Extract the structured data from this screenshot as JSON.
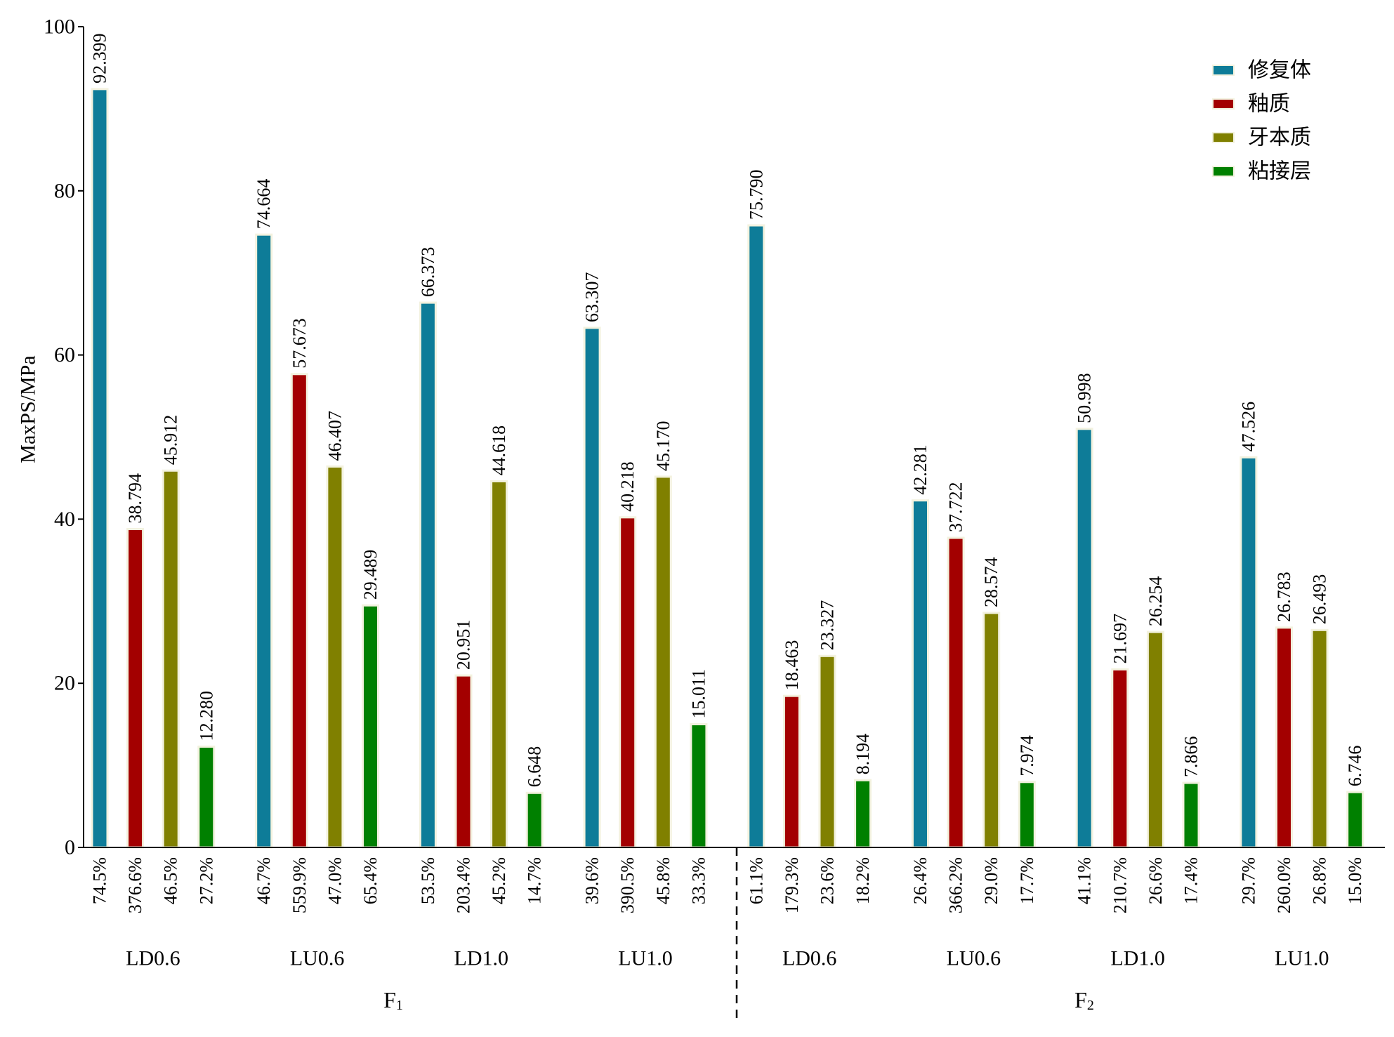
{
  "chart_data": {
    "type": "bar",
    "ylabel": "MaxPS/MPa",
    "ylim": [
      0,
      100
    ],
    "yticks": [
      "0",
      "20",
      "40",
      "60",
      "80",
      "100"
    ],
    "legend_position": "top-right",
    "grid": false,
    "colors": [
      "#0e7c98",
      "#a30000",
      "#808000",
      "#008000"
    ],
    "series": [
      {
        "name": "修复体"
      },
      {
        "name": "釉质"
      },
      {
        "name": "牙本质"
      },
      {
        "name": "粘接层"
      }
    ],
    "panels": [
      {
        "label_main": "F",
        "label_sub": "1",
        "groups": [
          {
            "name": "LD0.6",
            "values": [
              92.399,
              38.794,
              45.912,
              12.28
            ],
            "labels": [
              "92.399",
              "38.794",
              "45.912",
              "12.280"
            ],
            "percents": [
              "74.5%",
              "376.6%",
              "46.5%",
              "27.2%"
            ]
          },
          {
            "name": "LU0.6",
            "values": [
              74.664,
              57.673,
              46.407,
              29.489
            ],
            "labels": [
              "74.664",
              "57.673",
              "46.407",
              "29.489"
            ],
            "percents": [
              "46.7%",
              "559.9%",
              "47.0%",
              "65.4%"
            ]
          },
          {
            "name": "LD1.0",
            "values": [
              66.373,
              20.951,
              44.618,
              6.648
            ],
            "labels": [
              "66.373",
              "20.951",
              "44.618",
              "6.648"
            ],
            "percents": [
              "53.5%",
              "203.4%",
              "45.2%",
              "14.7%"
            ]
          },
          {
            "name": "LU1.0",
            "values": [
              63.307,
              40.218,
              45.17,
              15.011
            ],
            "labels": [
              "63.307",
              "40.218",
              "45.170",
              "15.011"
            ],
            "percents": [
              "39.6%",
              "390.5%",
              "45.8%",
              "33.3%"
            ]
          }
        ]
      },
      {
        "label_main": "F",
        "label_sub": "2",
        "groups": [
          {
            "name": "LD0.6",
            "values": [
              75.79,
              18.463,
              23.327,
              8.194
            ],
            "labels": [
              "75.790",
              "18.463",
              "23.327",
              "8.194"
            ],
            "percents": [
              "61.1%",
              "179.3%",
              "23.6%",
              "18.2%"
            ]
          },
          {
            "name": "LU0.6",
            "values": [
              42.281,
              37.722,
              28.574,
              7.974
            ],
            "labels": [
              "42.281",
              "37.722",
              "28.574",
              "7.974"
            ],
            "percents": [
              "26.4%",
              "366.2%",
              "29.0%",
              "17.7%"
            ]
          },
          {
            "name": "LD1.0",
            "values": [
              50.998,
              21.697,
              26.254,
              7.866
            ],
            "labels": [
              "50.998",
              "21.697",
              "26.254",
              "7.866"
            ],
            "percents": [
              "41.1%",
              "210.7%",
              "26.6%",
              "17.4%"
            ]
          },
          {
            "name": "LU1.0",
            "values": [
              47.526,
              26.783,
              26.493,
              6.746
            ],
            "labels": [
              "47.526",
              "26.783",
              "26.493",
              "6.746"
            ],
            "percents": [
              "29.7%",
              "260.0%",
              "26.8%",
              "15.0%"
            ]
          }
        ]
      }
    ]
  }
}
